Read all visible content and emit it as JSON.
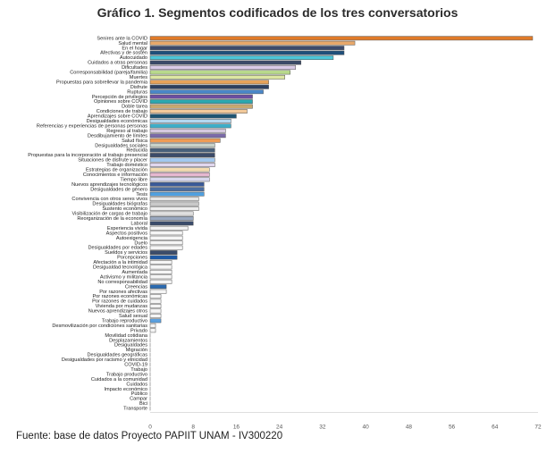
{
  "title": "Gráfico 1. Segmentos codificados de los tres conversatorios",
  "source": "Fuente: base de datos Proyecto PAPIIT UNAM - IV300220",
  "chart_data": {
    "type": "bar",
    "orientation": "horizontal",
    "title": "Gráfico 1. Segmentos codificados de los tres conversatorios",
    "xlim": [
      0,
      72
    ],
    "xticks": [
      0,
      8,
      16,
      24,
      32,
      40,
      48,
      56,
      64,
      72
    ],
    "grid": false,
    "categories": [
      "Senires ante la COVID",
      "Salud mental",
      "En el hogar",
      "Afectivas y de sostén",
      "Autocuidado",
      "Cuidados a otras personas",
      "Dificultades",
      "Corresponsabilidad (pareja/familia)",
      "Muertes",
      "Propuestas para sobrellevar la pandemia",
      "Disfrute",
      "Rupturas",
      "Percepción de privilegios",
      "Opiniones sobre COVID",
      "Doble tarea",
      "Condiciones de trabajo",
      "Aprendizajes sobre COVID",
      "Desigualdades económicas",
      "Referencias y experiencias de personas personas",
      "Regreso al trabajo",
      "Desdibujamiento de límites",
      "Salud física",
      "Desigualdades sociales",
      "Reducida",
      "Propuestas para la incorporación al trabajo presencial",
      "Situaciones de disfrute y placer",
      "Trabajo doméstico",
      "Estrategias de organización",
      "Conocimientos e información",
      "Tiempo libre",
      "Nuevos aprendizajes tecnológicos",
      "Desigualdades de género",
      "Tesis",
      "Convivencia con otros seres vivos",
      "Desigualdades biógrafas",
      "Sustento económico",
      "Visibilización de cargas de trabajo",
      "Reorganización de la economía",
      "Laboral",
      "Experiencia vivida",
      "Aspectos positivos",
      "Autoexigencia",
      "Duelo",
      "Desigualdades por edades",
      "Sueldos y servicios",
      "Porcepciones",
      "Afectación a la intimidad",
      "Desigualdad tecnológica",
      "Aumentada",
      "Activismo y militancia",
      "No corresponsabilidad",
      "Creencias",
      "Por razones afectivas",
      "Por razones económicas",
      "Por razones de cuidados",
      "Vivienda por mudanzas",
      "Nuevos aprendizajes otros",
      "Salud sexual",
      "Trabajo reproductivo",
      "Desmovilización por condiciones sanitarias",
      "Privado",
      "Movilidad cotidiana",
      "Desplazamientos",
      "Desigualdades",
      "Migración",
      "Desigualdades geográficas",
      "Desigualdades por racismo y etnicidad",
      "COVID-19",
      "Trabajo",
      "Trabajo productivo",
      "Cuidados a la comunidad",
      "Cuidados",
      "Impacto económico",
      "Público",
      "Campar",
      "Bici",
      "Transporte"
    ],
    "values": [
      71,
      38,
      36,
      36,
      34,
      28,
      27,
      26,
      25,
      22,
      22,
      21,
      19,
      19,
      19,
      18,
      16,
      15,
      15,
      14,
      14,
      13,
      12,
      12,
      12,
      12,
      12,
      11,
      11,
      11,
      10,
      10,
      10,
      9,
      9,
      9,
      8,
      8,
      8,
      7,
      6,
      6,
      6,
      6,
      5,
      5,
      4,
      4,
      4,
      4,
      4,
      3,
      3,
      2,
      2,
      2,
      2,
      2,
      2,
      1,
      1,
      0,
      0,
      0,
      0,
      0,
      0,
      0,
      0,
      0,
      0,
      0,
      0,
      0,
      0,
      0,
      0
    ],
    "colors": [
      "#e07b2a",
      "#e8a86a",
      "#3d4a6b",
      "#1f4f7a",
      "#4cc6d8",
      "#3a4a68",
      "#d9cbe8",
      "#b8d98c",
      "#dde7a2",
      "#e7a35a",
      "#2d4060",
      "#4a87c8",
      "#6b4ea0",
      "#2aa8b0",
      "#c7a870",
      "#f2c99a",
      "#1e5472",
      "#b3d7f0",
      "#3daec9",
      "#d6c9df",
      "#7a6aa8",
      "#ef9c55",
      "#c9d2c9",
      "#485f7a",
      "#3b4b6a",
      "#a3c9f0",
      "#e1d7ee",
      "#f4dcb0",
      "#e6b8d0",
      "#d8d8ee",
      "#3a5a99",
      "#4c6ea0",
      "#50a0e0",
      "#e4e4e4",
      "#c9c9c9",
      "#eeeeee",
      "#e0e0e0",
      "#9aa9c0",
      "#3b4c6b",
      "#f2f2f2",
      "#f5f5f5",
      "#f5f5f5",
      "#f5f5f5",
      "#f5f5f5",
      "#3b4c6b",
      "#1e5aa6",
      "#f5f5f5",
      "#f5f5f5",
      "#f5f5f5",
      "#f5f5f5",
      "#f5f5f5",
      "#2a6ab0",
      "#f5f5f5",
      "#f5f5f5",
      "#f5f5f5",
      "#f5f5f5",
      "#f5f5f5",
      "#f5f5f5",
      "#5aa0e0",
      "#f5f5f5",
      "#f5f5f5",
      "#f5f5f5",
      "#f5f5f5",
      "#f5f5f5",
      "#f5f5f5",
      "#f5f5f5",
      "#f5f5f5",
      "#f5f5f5",
      "#f5f5f5",
      "#f5f5f5",
      "#f5f5f5",
      "#f5f5f5",
      "#f5f5f5",
      "#f5f5f5",
      "#f5f5f5",
      "#f5f5f5",
      "#f5f5f5"
    ]
  }
}
